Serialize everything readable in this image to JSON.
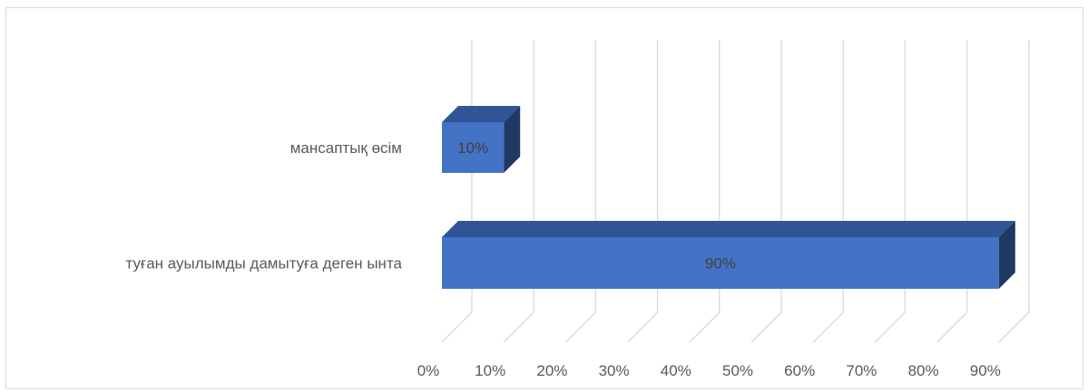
{
  "chart_data": {
    "type": "bar",
    "orientation": "horizontal",
    "three_d": true,
    "categories": [
      "мансаптық өсім",
      "туған ауылымды дамытуға деген ынта"
    ],
    "values": [
      10,
      90
    ],
    "data_labels": [
      "10%",
      "90%"
    ],
    "x_ticks": [
      "0%",
      "10%",
      "20%",
      "30%",
      "40%",
      "50%",
      "60%",
      "70%",
      "80%",
      "90%"
    ],
    "xlim": [
      0,
      90
    ],
    "grid": true,
    "legend": "none",
    "colors": {
      "bar_front": "#4472c4",
      "bar_top": "#2f5597",
      "bar_side": "#203864",
      "grid": "#d9d9d9",
      "text": "#595959"
    }
  }
}
